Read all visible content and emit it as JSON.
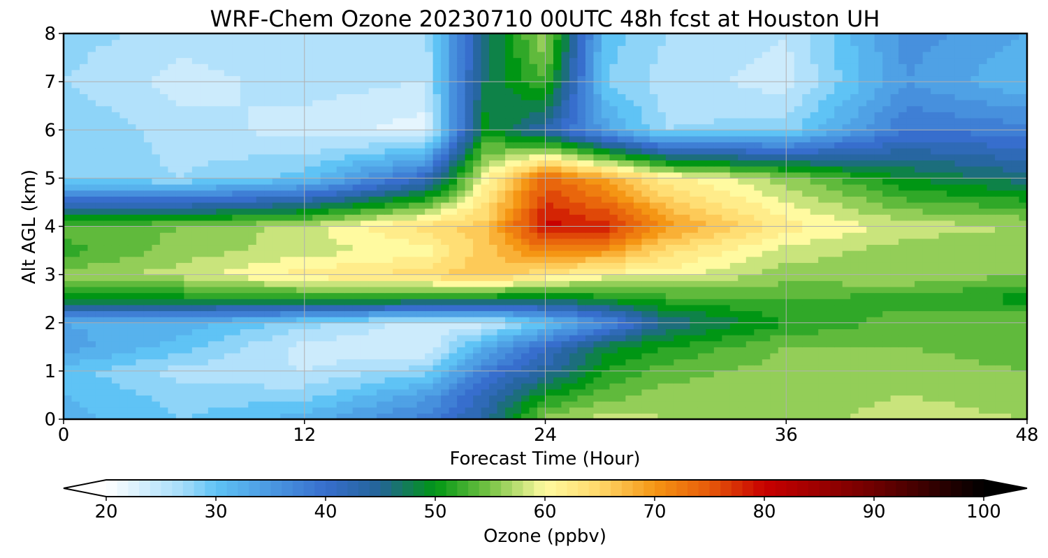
{
  "chart_data": {
    "type": "heatmap",
    "title": "WRF-Chem Ozone  20230710 00UTC 48h fcst at Houston UH",
    "xlabel": "Forecast Time (Hour)",
    "ylabel": "Alt AGL (km)",
    "xlim": [
      0,
      48
    ],
    "ylim": [
      0,
      8
    ],
    "x_ticks": [
      0,
      12,
      24,
      36,
      48
    ],
    "y_ticks": [
      0,
      1,
      2,
      3,
      4,
      5,
      6,
      7,
      8
    ],
    "grid": true,
    "colorbar": {
      "label": "Ozone  (ppbv)",
      "range": [
        20,
        100
      ],
      "ticks": [
        20,
        30,
        40,
        50,
        60,
        70,
        80,
        90,
        100
      ],
      "extend": "both",
      "orientation": "horizontal",
      "placement": "bottom"
    },
    "x_hours": [
      0,
      6,
      12,
      18,
      21,
      24,
      27,
      30,
      36,
      42,
      48
    ],
    "z_km": [
      0.0,
      0.5,
      1.0,
      1.5,
      2.0,
      2.5,
      3.0,
      3.5,
      4.0,
      5.0,
      6.0,
      7.0,
      8.0
    ],
    "ozone_ppbv": [
      [
        32,
        29,
        32,
        38,
        44,
        56,
        58,
        57,
        56,
        58,
        57
      ],
      [
        31,
        28,
        28,
        34,
        42,
        50,
        54,
        56,
        56,
        57,
        56
      ],
      [
        30,
        26,
        25,
        28,
        38,
        44,
        51,
        54,
        56,
        56,
        55
      ],
      [
        34,
        30,
        24,
        23,
        33,
        40,
        48,
        51,
        55,
        55,
        54
      ],
      [
        33,
        32,
        28,
        24,
        24,
        30,
        36,
        45,
        51,
        54,
        55
      ],
      [
        49,
        50,
        51,
        50,
        49,
        48,
        50,
        52,
        53,
        52,
        50
      ],
      [
        56,
        58,
        62,
        64,
        67,
        63,
        60,
        60,
        56,
        57,
        55
      ],
      [
        52,
        56,
        58,
        60,
        66,
        72,
        70,
        64,
        58,
        56,
        55
      ],
      [
        54,
        55,
        58,
        64,
        66,
        80,
        78,
        70,
        62,
        58,
        57
      ],
      [
        28,
        27,
        30,
        41,
        60,
        74,
        69,
        62,
        56,
        49,
        46
      ],
      [
        29,
        26,
        24,
        22,
        50,
        43,
        34,
        27,
        28,
        39,
        38
      ],
      [
        27,
        24,
        26,
        25,
        47,
        53,
        29,
        26,
        24,
        35,
        31
      ],
      [
        28,
        26,
        27,
        26,
        46,
        57,
        30,
        27,
        25,
        36,
        33
      ]
    ]
  }
}
